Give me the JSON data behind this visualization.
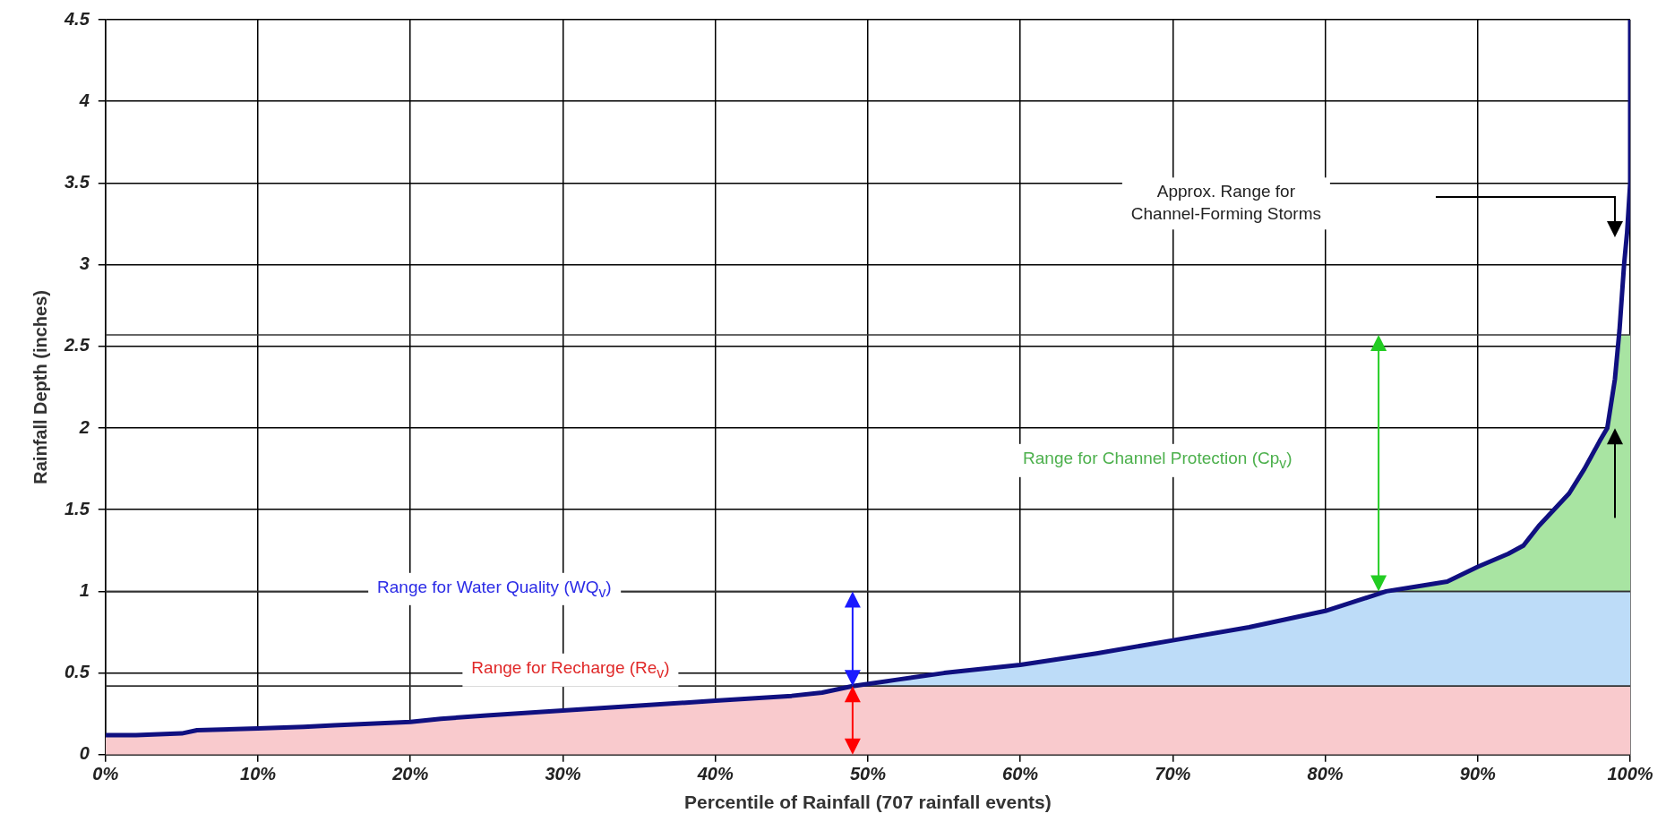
{
  "chart_data": {
    "type": "line",
    "xlabel": "Percentile of Rainfall (707 rainfall events)",
    "ylabel": "Rainfall Depth (inches)",
    "x": [
      0,
      2,
      5,
      6,
      10,
      13,
      15,
      20,
      22,
      25,
      30,
      35,
      40,
      45,
      47,
      49,
      52,
      55,
      60,
      65,
      70,
      75,
      80,
      82,
      84,
      86,
      88,
      90,
      92,
      93,
      94,
      95,
      96,
      97,
      98,
      98.5,
      99,
      99.3,
      99.6,
      99.8,
      100,
      100
    ],
    "series": [
      {
        "color": "#101080",
        "values": [
          0.12,
          0.12,
          0.13,
          0.15,
          0.16,
          0.17,
          0.18,
          0.2,
          0.22,
          0.24,
          0.27,
          0.3,
          0.33,
          0.36,
          0.38,
          0.42,
          0.46,
          0.5,
          0.55,
          0.62,
          0.7,
          0.78,
          0.88,
          0.94,
          1.0,
          1.03,
          1.06,
          1.15,
          1.23,
          1.28,
          1.4,
          1.5,
          1.6,
          1.75,
          1.92,
          2.0,
          2.3,
          2.6,
          3.0,
          3.2,
          3.5,
          4.5
        ]
      }
    ],
    "bands": [
      {
        "axis": "y",
        "from": 0,
        "to": 0.42,
        "label": "Range for Recharge (Re$_{v}$)",
        "color": "#f9cacd"
      },
      {
        "axis": "y",
        "from": 0.42,
        "to": 1.0,
        "label": "Range for Water Quality (WQ$_{v}$)",
        "color": "#bddcf8"
      },
      {
        "axis": "y",
        "from": 1.0,
        "to": 2.57,
        "label": "Range for Channel Protection (Cp$_{v}$)",
        "color": "#a8e4a2"
      }
    ],
    "annotations": [
      "Approx. Range for\nChannel-Forming Storms"
    ],
    "xlim": [
      0,
      100
    ],
    "ylim": [
      0,
      4.5
    ],
    "xticks": [
      {
        "value": 0,
        "label": "0%"
      },
      {
        "value": 10,
        "label": "10%"
      },
      {
        "value": 20,
        "label": "20%"
      },
      {
        "value": 30,
        "label": "30%"
      },
      {
        "value": 40,
        "label": "40%"
      },
      {
        "value": 50,
        "label": "50%"
      },
      {
        "value": 60,
        "label": "60%"
      },
      {
        "value": 70,
        "label": "70%"
      },
      {
        "value": 80,
        "label": "80%"
      },
      {
        "value": 90,
        "label": "90%"
      },
      {
        "value": 100,
        "label": "100%"
      }
    ],
    "yticks": [
      0,
      0.5,
      1,
      1.5,
      2,
      2.5,
      3,
      3.5,
      4,
      4.5
    ],
    "grid": true,
    "legend": false,
    "marker": "none",
    "line_style": "solid"
  }
}
